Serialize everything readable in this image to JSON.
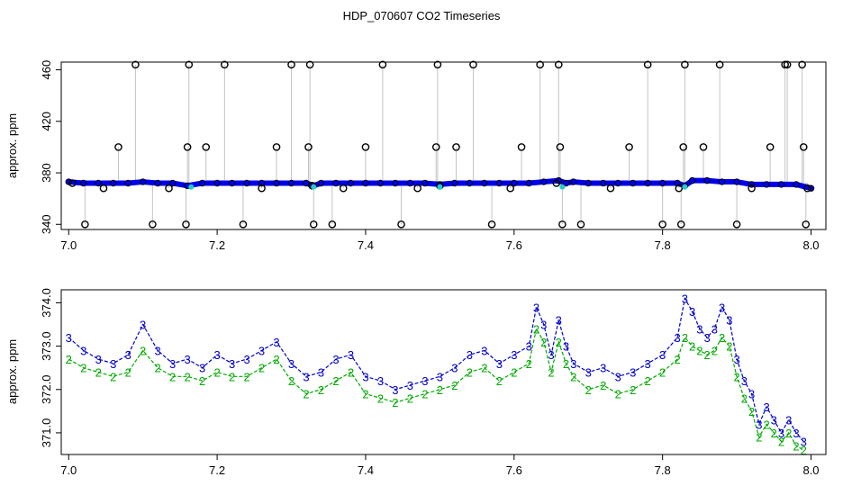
{
  "chart_data": [
    {
      "type": "scatter",
      "title": "HDP_070607  CO2 Timeseries",
      "xlabel": "",
      "ylabel": "approx. ppm",
      "xlim": [
        6.99,
        8.02
      ],
      "ylim": [
        336,
        466
      ],
      "xticks": [
        "7.0",
        "7.2",
        "7.4",
        "7.6",
        "7.8",
        "8.0"
      ],
      "yticks": [
        "340",
        "380",
        "420",
        "460"
      ],
      "grid": false,
      "colors": {
        "series": "#0000ee",
        "outliers": "#000000",
        "gaps": "#22cccc",
        "drop_lines": "#888888"
      },
      "series": [
        {
          "x": [
            7.0,
            7.02,
            7.04,
            7.06,
            7.08,
            7.1,
            7.12,
            7.14,
            7.16,
            7.18,
            7.2,
            7.22,
            7.24,
            7.26,
            7.28,
            7.3,
            7.32,
            7.33,
            7.34,
            7.36,
            7.38,
            7.4,
            7.42,
            7.44,
            7.46,
            7.48,
            7.5,
            7.52,
            7.54,
            7.56,
            7.58,
            7.6,
            7.62,
            7.64,
            7.66,
            7.67,
            7.68,
            7.7,
            7.72,
            7.74,
            7.76,
            7.78,
            7.8,
            7.82,
            7.83,
            7.84,
            7.86,
            7.88,
            7.9,
            7.92,
            7.94,
            7.96,
            7.98,
            8.0
          ],
          "values": [
            373,
            372,
            372,
            372,
            372,
            373,
            372,
            372,
            370,
            372,
            372,
            372,
            372,
            372,
            372,
            372,
            372,
            370,
            372,
            372,
            372,
            372,
            372,
            372,
            372,
            372,
            371,
            372,
            372,
            372,
            372,
            372,
            372,
            373,
            374,
            372,
            373,
            372,
            372,
            372,
            372,
            372,
            372,
            372,
            370,
            374,
            374,
            373,
            373,
            371,
            371,
            371,
            371,
            368
          ]
        }
      ],
      "outliers": {
        "x": [
          7.005,
          7.022,
          7.047,
          7.067,
          7.09,
          7.113,
          7.135,
          7.158,
          7.16,
          7.162,
          7.185,
          7.21,
          7.235,
          7.26,
          7.28,
          7.3,
          7.323,
          7.325,
          7.328,
          7.33,
          7.355,
          7.37,
          7.4,
          7.423,
          7.448,
          7.47,
          7.495,
          7.497,
          7.5,
          7.522,
          7.545,
          7.57,
          7.595,
          7.61,
          7.635,
          7.657,
          7.66,
          7.662,
          7.665,
          7.69,
          7.73,
          7.755,
          7.78,
          7.8,
          7.822,
          7.825,
          7.828,
          7.83,
          7.855,
          7.877,
          7.9,
          7.92,
          7.945,
          7.965,
          7.968,
          7.988,
          7.99,
          7.993,
          7.995
        ],
        "values": [
          372,
          340,
          368,
          400,
          464,
          340,
          368,
          340,
          400,
          464,
          400,
          464,
          340,
          368,
          400,
          464,
          400,
          464,
          370,
          340,
          340,
          368,
          400,
          464,
          340,
          368,
          400,
          464,
          370,
          400,
          464,
          340,
          368,
          400,
          464,
          372,
          464,
          400,
          340,
          340,
          368,
          400,
          464,
          340,
          368,
          340,
          400,
          464,
          400,
          464,
          340,
          368,
          400,
          464,
          464,
          464,
          400,
          340,
          368
        ]
      }
    },
    {
      "type": "line",
      "title": "",
      "xlabel": "",
      "ylabel": "approx. ppm",
      "xlim": [
        6.99,
        8.02
      ],
      "ylim": [
        370.5,
        374.3
      ],
      "xticks": [
        "7.0",
        "7.2",
        "7.4",
        "7.6",
        "7.8",
        "8.0"
      ],
      "yticks": [
        "371.0",
        "372.0",
        "373.0",
        "374.0"
      ],
      "grid": false,
      "point_symbols": [
        "3",
        "2"
      ],
      "colors": {
        "3": "#0000cc",
        "2": "#00aa00"
      },
      "series": [
        {
          "symbol": "3",
          "x": [
            7.0,
            7.02,
            7.04,
            7.06,
            7.08,
            7.1,
            7.12,
            7.14,
            7.16,
            7.18,
            7.2,
            7.22,
            7.24,
            7.26,
            7.28,
            7.3,
            7.32,
            7.34,
            7.36,
            7.38,
            7.4,
            7.42,
            7.44,
            7.46,
            7.48,
            7.5,
            7.52,
            7.54,
            7.56,
            7.58,
            7.6,
            7.62,
            7.63,
            7.64,
            7.65,
            7.66,
            7.67,
            7.68,
            7.7,
            7.72,
            7.74,
            7.76,
            7.78,
            7.8,
            7.82,
            7.83,
            7.84,
            7.85,
            7.86,
            7.87,
            7.88,
            7.89,
            7.9,
            7.91,
            7.92,
            7.93,
            7.94,
            7.95,
            7.96,
            7.97,
            7.98,
            7.99
          ],
          "values": [
            373.2,
            372.9,
            372.7,
            372.6,
            372.8,
            373.5,
            372.9,
            372.6,
            372.7,
            372.5,
            372.8,
            372.6,
            372.7,
            372.9,
            373.1,
            372.6,
            372.3,
            372.4,
            372.7,
            372.8,
            372.3,
            372.2,
            372.0,
            372.1,
            372.2,
            372.3,
            372.5,
            372.8,
            372.9,
            372.6,
            372.8,
            373.0,
            373.9,
            373.5,
            372.8,
            373.6,
            373.0,
            372.6,
            372.4,
            372.5,
            372.3,
            372.4,
            372.6,
            372.8,
            373.2,
            374.1,
            373.8,
            373.4,
            373.2,
            373.4,
            373.9,
            373.6,
            372.7,
            372.2,
            371.9,
            371.2,
            371.6,
            371.3,
            371.0,
            371.3,
            371.0,
            370.8
          ]
        },
        {
          "symbol": "2",
          "x": [
            7.0,
            7.02,
            7.04,
            7.06,
            7.08,
            7.1,
            7.12,
            7.14,
            7.16,
            7.18,
            7.2,
            7.22,
            7.24,
            7.26,
            7.28,
            7.3,
            7.32,
            7.34,
            7.36,
            7.38,
            7.4,
            7.42,
            7.44,
            7.46,
            7.48,
            7.5,
            7.52,
            7.54,
            7.56,
            7.58,
            7.6,
            7.62,
            7.63,
            7.64,
            7.65,
            7.66,
            7.67,
            7.68,
            7.7,
            7.72,
            7.74,
            7.76,
            7.78,
            7.8,
            7.82,
            7.83,
            7.84,
            7.85,
            7.86,
            7.87,
            7.88,
            7.89,
            7.9,
            7.91,
            7.92,
            7.93,
            7.94,
            7.95,
            7.96,
            7.97,
            7.98,
            7.99
          ],
          "values": [
            372.7,
            372.5,
            372.4,
            372.3,
            372.4,
            372.9,
            372.5,
            372.3,
            372.3,
            372.2,
            372.4,
            372.3,
            372.3,
            372.5,
            372.7,
            372.2,
            371.9,
            372.0,
            372.2,
            372.4,
            371.9,
            371.8,
            371.7,
            371.8,
            371.9,
            372.0,
            372.1,
            372.4,
            372.5,
            372.2,
            372.4,
            372.6,
            373.4,
            373.1,
            372.4,
            373.1,
            372.6,
            372.3,
            372.0,
            372.1,
            371.9,
            372.0,
            372.2,
            372.4,
            372.7,
            373.2,
            373.0,
            372.9,
            372.8,
            372.9,
            373.2,
            373.0,
            372.3,
            371.8,
            371.5,
            370.9,
            371.2,
            371.0,
            370.8,
            371.0,
            370.7,
            370.6
          ]
        }
      ]
    }
  ]
}
